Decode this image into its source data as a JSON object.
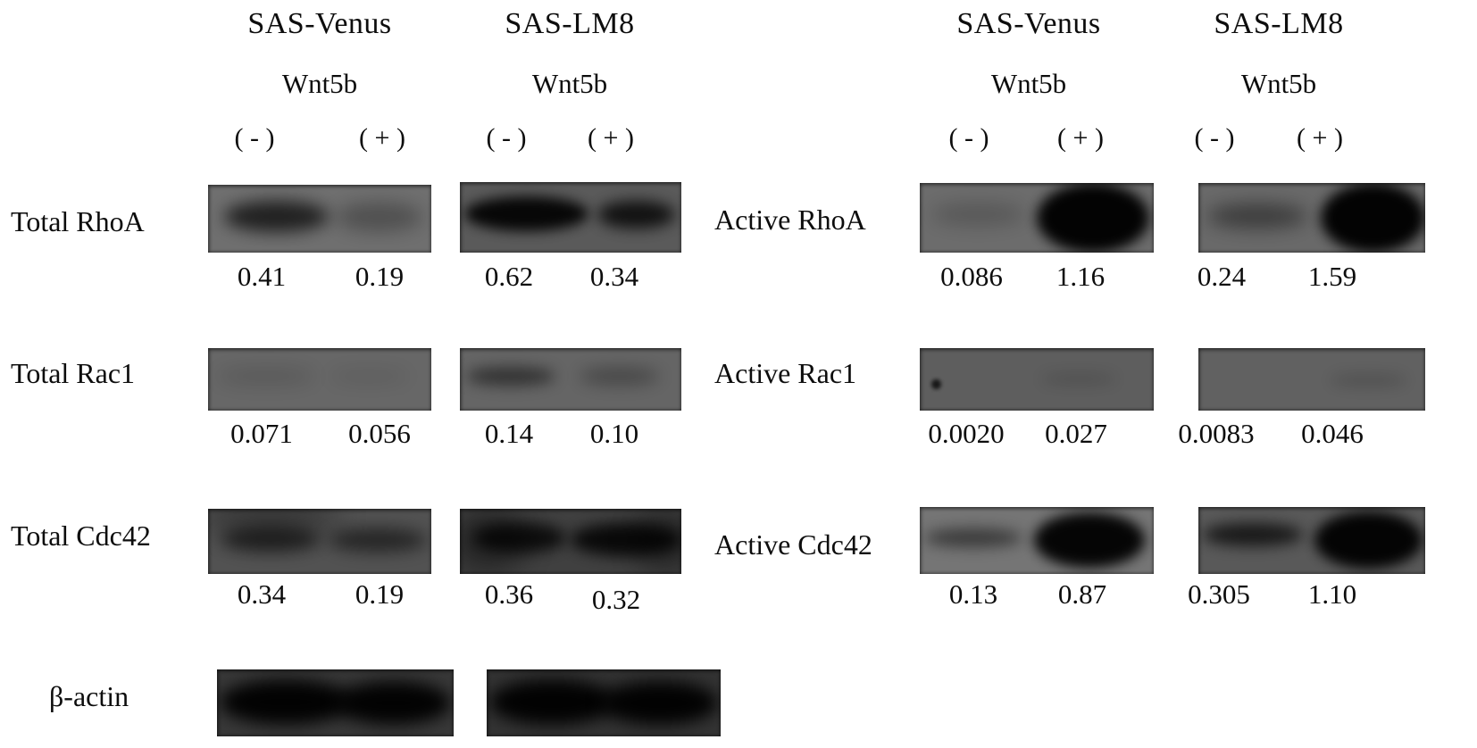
{
  "figure": {
    "description": "Western blot figure: total and active RhoA, Rac1, Cdc42 in SAS-Venus and SAS-LM8 cells with or without Wnt5b; beta-actin loading control; densitometry values under each lane",
    "groups": [
      {
        "id": "total-proteins",
        "columns": [
          {
            "cell_line": "SAS-Venus",
            "treatment": "Wnt5b",
            "lanes": [
              "( - )",
              "( + )"
            ]
          },
          {
            "cell_line": "SAS-LM8",
            "treatment": "Wnt5b",
            "lanes": [
              "( - )",
              "( + )"
            ]
          }
        ],
        "rows": [
          {
            "label": "Total RhoA",
            "values": [
              "0.41",
              "0.19",
              "0.62",
              "0.34"
            ]
          },
          {
            "label": "Total Rac1",
            "values": [
              "0.071",
              "0.056",
              "0.14",
              "0.10"
            ]
          },
          {
            "label": "Total Cdc42",
            "values": [
              "0.34",
              "0.19",
              "0.36",
              "0.32"
            ]
          },
          {
            "label": "β-actin",
            "values": []
          }
        ]
      },
      {
        "id": "active-proteins",
        "columns": [
          {
            "cell_line": "SAS-Venus",
            "treatment": "Wnt5b",
            "lanes": [
              "( - )",
              "( + )"
            ]
          },
          {
            "cell_line": "SAS-LM8",
            "treatment": "Wnt5b",
            "lanes": [
              "( - )",
              "( + )"
            ]
          }
        ],
        "rows": [
          {
            "label": "Active RhoA",
            "values": [
              "0.086",
              "1.16",
              "0.24",
              "1.59"
            ]
          },
          {
            "label": "Active Rac1",
            "values": [
              "0.0020",
              "0.027",
              "0.0083",
              "0.046"
            ]
          },
          {
            "label": "Active Cdc42",
            "values": [
              "0.13",
              "0.87",
              "0.305",
              "1.10"
            ]
          }
        ]
      }
    ]
  },
  "chart_data": {
    "type": "table",
    "title": "Western blot densitometry of Rho GTPases in SAS-Venus and SAS-LM8 cells ± Wnt5b",
    "conditions": [
      "SAS-Venus Wnt5b(-)",
      "SAS-Venus Wnt5b(+)",
      "SAS-LM8 Wnt5b(-)",
      "SAS-LM8 Wnt5b(+)"
    ],
    "rows": [
      {
        "protein": "Total RhoA",
        "values": [
          0.41,
          0.19,
          0.62,
          0.34
        ]
      },
      {
        "protein": "Total Rac1",
        "values": [
          0.071,
          0.056,
          0.14,
          0.1
        ]
      },
      {
        "protein": "Total Cdc42",
        "values": [
          0.34,
          0.19,
          0.36,
          0.32
        ]
      },
      {
        "protein": "β-actin",
        "values": null
      },
      {
        "protein": "Active RhoA",
        "values": [
          0.086,
          1.16,
          0.24,
          1.59
        ]
      },
      {
        "protein": "Active Rac1",
        "values": [
          0.002,
          0.027,
          0.0083,
          0.046
        ]
      },
      {
        "protein": "Active Cdc42",
        "values": [
          0.13,
          0.87,
          0.305,
          1.1
        ]
      }
    ]
  },
  "colors": {
    "background": "#ffffff",
    "text": "#0d0d0d",
    "band": "#000000"
  },
  "blots": {
    "r1a": {
      "bg": "#6f6f6f",
      "bands": [
        [
          7,
          24,
          47,
          46,
          0.7,
          9
        ],
        [
          57,
          26,
          39,
          42,
          0.28,
          10
        ]
      ]
    },
    "r1b": {
      "bg": "#5a5a5a",
      "bands": [
        [
          2,
          20,
          56,
          50,
          0.92,
          7
        ],
        [
          62,
          26,
          35,
          40,
          0.8,
          8
        ]
      ]
    },
    "r1c": {
      "bg": "#6c6c6c",
      "bands": [
        [
          5,
          28,
          40,
          34,
          0.18,
          10
        ],
        [
          50,
          0,
          48,
          100,
          0.97,
          7
        ]
      ]
    },
    "r1d": {
      "bg": "#696969",
      "bands": [
        [
          4,
          30,
          44,
          36,
          0.42,
          10
        ],
        [
          54,
          0,
          46,
          100,
          0.97,
          7
        ]
      ]
    },
    "r2a": {
      "bg": "#676767",
      "bands": [
        [
          4,
          32,
          44,
          26,
          0.13,
          10
        ],
        [
          54,
          34,
          36,
          22,
          0.09,
          10
        ]
      ]
    },
    "r2b": {
      "bg": "#656565",
      "bands": [
        [
          3,
          30,
          40,
          30,
          0.5,
          8
        ],
        [
          54,
          32,
          36,
          26,
          0.3,
          9
        ]
      ]
    },
    "r2c": {
      "bg": "#5e5e5e",
      "bands": [
        [
          5,
          50,
          4,
          16,
          0.75,
          2
        ],
        [
          52,
          40,
          32,
          18,
          0.14,
          8
        ]
      ]
    },
    "r2d": {
      "bg": "#616161",
      "bands": [
        [
          58,
          42,
          34,
          20,
          0.16,
          8
        ]
      ]
    },
    "r3a": {
      "bg": "#525252",
      "bands": [
        [
          -5,
          -15,
          65,
          50,
          0.35,
          16
        ],
        [
          6,
          28,
          44,
          38,
          0.6,
          9
        ],
        [
          54,
          30,
          44,
          36,
          0.55,
          9
        ]
      ]
    },
    "r3b": {
      "bg": "#404040",
      "bands": [
        [
          -5,
          0,
          35,
          100,
          0.4,
          16
        ],
        [
          6,
          22,
          42,
          45,
          0.8,
          8
        ],
        [
          50,
          22,
          50,
          50,
          0.85,
          8
        ],
        [
          78,
          0,
          30,
          100,
          0.35,
          14
        ]
      ]
    },
    "r3c": {
      "bg": "#757575",
      "bands": [
        [
          2,
          32,
          42,
          28,
          0.5,
          8
        ],
        [
          49,
          8,
          47,
          82,
          0.95,
          7
        ]
      ]
    },
    "r3d": {
      "bg": "#595959",
      "bands": [
        [
          2,
          24,
          44,
          34,
          0.72,
          8
        ],
        [
          51,
          6,
          48,
          86,
          0.95,
          7
        ]
      ]
    },
    "r4a": {
      "bg": "#383838",
      "bands": [
        [
          1,
          15,
          56,
          68,
          0.95,
          9
        ],
        [
          50,
          17,
          49,
          66,
          0.95,
          9
        ]
      ]
    },
    "r4b": {
      "bg": "#333333",
      "bands": [
        [
          1,
          15,
          54,
          68,
          0.95,
          9
        ],
        [
          49,
          17,
          50,
          66,
          0.95,
          9
        ]
      ]
    }
  }
}
